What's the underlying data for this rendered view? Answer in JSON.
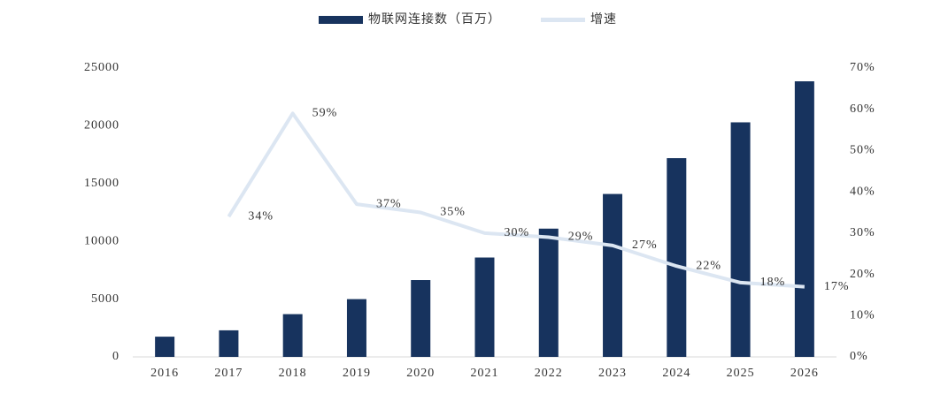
{
  "chart_data": {
    "type": "bar-line",
    "categories": [
      "2016",
      "2017",
      "2018",
      "2019",
      "2020",
      "2021",
      "2022",
      "2023",
      "2024",
      "2025",
      "2026"
    ],
    "series": [
      {
        "name": "物联网连接数（百万）",
        "type": "bar",
        "color": "#17335e",
        "values": [
          1750,
          2300,
          3700,
          5000,
          6650,
          8600,
          11100,
          14100,
          17200,
          20300,
          23850
        ]
      },
      {
        "name": "增速",
        "type": "line",
        "axis": "y2",
        "color": "#dce6f2",
        "values": [
          null,
          34,
          59,
          37,
          35,
          30,
          29,
          27,
          22,
          18,
          17
        ],
        "value_labels": [
          null,
          "34%",
          "59%",
          "37%",
          "35%",
          "30%",
          "29%",
          "27%",
          "22%",
          "18%",
          "17%"
        ]
      }
    ],
    "ylim": [
      0,
      25000
    ],
    "yticks": [
      0,
      5000,
      10000,
      15000,
      20000,
      25000
    ],
    "y2lim": [
      0,
      70
    ],
    "y2ticks": [
      {
        "value": 0,
        "label": "0%"
      },
      {
        "value": 10,
        "label": "10%"
      },
      {
        "value": 20,
        "label": "20%"
      },
      {
        "value": 30,
        "label": "30%"
      },
      {
        "value": 40,
        "label": "40%"
      },
      {
        "value": 50,
        "label": "50%"
      },
      {
        "value": 60,
        "label": "60%"
      },
      {
        "value": 70,
        "label": "70%"
      }
    ],
    "grid": false,
    "legend": "top"
  }
}
